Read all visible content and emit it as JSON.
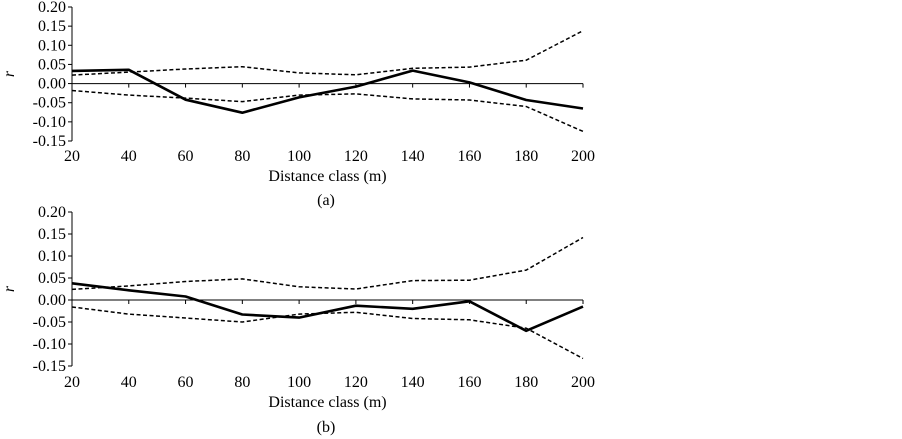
{
  "chart_data": [
    {
      "type": "line",
      "panel_label": "(a)",
      "xlabel": "Distance class (m)",
      "ylabel": "r",
      "x": [
        20,
        40,
        60,
        80,
        100,
        120,
        140,
        160,
        180,
        200
      ],
      "xlim": [
        20,
        200
      ],
      "ylim": [
        -0.15,
        0.2
      ],
      "x_ticks": [
        20,
        40,
        60,
        80,
        100,
        120,
        140,
        160,
        180,
        200
      ],
      "y_ticks": [
        "0.20",
        "0.15",
        "0.10",
        "0.05",
        "0.00",
        "-0.05",
        "-0.10",
        "-0.15"
      ],
      "grid": false,
      "series": [
        {
          "role": "observed",
          "style": "solid",
          "color": "#000000",
          "values": [
            0.033,
            0.036,
            -0.042,
            -0.076,
            -0.036,
            -0.008,
            0.034,
            0.003,
            -0.043,
            -0.065
          ]
        },
        {
          "role": "upper",
          "style": "dashed",
          "color": "#000000",
          "values": [
            0.022,
            0.03,
            0.038,
            0.044,
            0.028,
            0.023,
            0.04,
            0.043,
            0.061,
            0.138
          ]
        },
        {
          "role": "lower",
          "style": "dashed",
          "color": "#000000",
          "values": [
            -0.018,
            -0.03,
            -0.038,
            -0.047,
            -0.03,
            -0.027,
            -0.04,
            -0.043,
            -0.06,
            -0.125
          ]
        }
      ]
    },
    {
      "type": "line",
      "panel_label": "(b)",
      "xlabel": "Distance class (m)",
      "ylabel": "r",
      "x": [
        20,
        40,
        60,
        80,
        100,
        120,
        140,
        160,
        180,
        200
      ],
      "xlim": [
        20,
        200
      ],
      "ylim": [
        -0.15,
        0.2
      ],
      "x_ticks": [
        20,
        40,
        60,
        80,
        100,
        120,
        140,
        160,
        180,
        200
      ],
      "y_ticks": [
        "0.20",
        "0.15",
        "0.10",
        "0.05",
        "0.00",
        "-0.05",
        "-0.10",
        "-0.15"
      ],
      "grid": false,
      "series": [
        {
          "role": "observed",
          "style": "solid",
          "color": "#000000",
          "values": [
            0.038,
            0.022,
            0.008,
            -0.033,
            -0.04,
            -0.013,
            -0.02,
            -0.003,
            -0.07,
            -0.015
          ]
        },
        {
          "role": "upper",
          "style": "dashed",
          "color": "#000000",
          "values": [
            0.024,
            0.032,
            0.042,
            0.048,
            0.03,
            0.025,
            0.044,
            0.045,
            0.068,
            0.142
          ]
        },
        {
          "role": "lower",
          "style": "dashed",
          "color": "#000000",
          "values": [
            -0.016,
            -0.032,
            -0.041,
            -0.05,
            -0.032,
            -0.028,
            -0.042,
            -0.045,
            -0.064,
            -0.133
          ]
        }
      ]
    }
  ]
}
